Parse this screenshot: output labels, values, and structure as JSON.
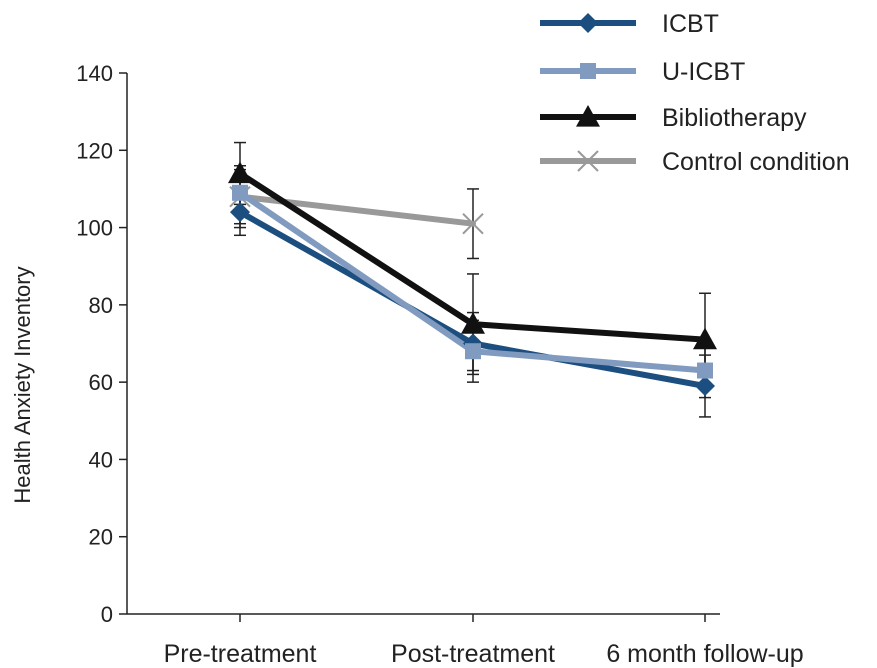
{
  "chart_data": {
    "type": "line",
    "title": "",
    "xlabel": "",
    "ylabel": "Health Anxiety Inventory",
    "categories": [
      "Pre-treatment",
      "Post-treatment",
      "6 month follow-up"
    ],
    "ylim": [
      0,
      140
    ],
    "yticks": [
      0,
      20,
      40,
      60,
      80,
      100,
      120,
      140
    ],
    "grid": false,
    "legend": "top-right",
    "series": [
      {
        "name": "ICBT",
        "color": "#1c4f80",
        "marker": "diamond",
        "values": [
          104,
          70,
          59
        ],
        "error_low": [
          98,
          63,
          51
        ],
        "error_high": [
          110,
          78,
          67
        ]
      },
      {
        "name": "U-ICBT",
        "color": "#809bbf",
        "marker": "square",
        "values": [
          109,
          68,
          63
        ],
        "error_low": [
          101,
          60,
          56
        ],
        "error_high": [
          116,
          76,
          70
        ]
      },
      {
        "name": "Bibliotherapy",
        "color": "#111111",
        "marker": "triangle",
        "values": [
          114,
          75,
          71
        ],
        "error_low": [
          106,
          62,
          59
        ],
        "error_high": [
          122,
          88,
          83
        ]
      },
      {
        "name": "Control condition",
        "color": "#999999",
        "marker": "x",
        "values": [
          108,
          101,
          null
        ],
        "error_low": [
          100,
          92,
          null
        ],
        "error_high": [
          115,
          110,
          null
        ]
      }
    ]
  }
}
